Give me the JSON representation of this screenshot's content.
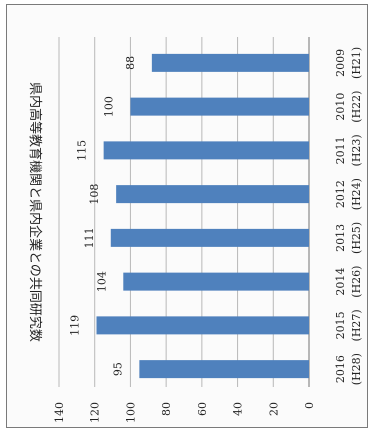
{
  "chart_data": {
    "type": "bar",
    "orientation": "rotated-90",
    "title": "県内高等教育機関と県内企業との共同研究数",
    "categories": [
      [
        "2009",
        "(H21)"
      ],
      [
        "2010",
        "(H22)"
      ],
      [
        "2011",
        "(H23)"
      ],
      [
        "2012",
        "(H24)"
      ],
      [
        "2013",
        "(H25)"
      ],
      [
        "2014",
        "(H26)"
      ],
      [
        "2015",
        "(H27)"
      ],
      [
        "2016",
        "(H28)"
      ]
    ],
    "values": [
      88,
      100,
      115,
      108,
      111,
      104,
      119,
      95
    ],
    "ylim": [
      0,
      140
    ],
    "yticks": [
      0,
      20,
      40,
      60,
      80,
      100,
      120,
      140
    ],
    "grid": true,
    "bar_color": "#4f81bd",
    "grid_color": "#b8b8b8",
    "text_color": "#222222"
  }
}
